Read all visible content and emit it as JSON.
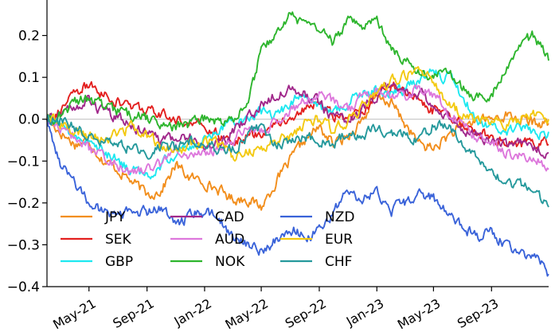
{
  "chart_data": {
    "type": "line",
    "title": "",
    "xlabel": "",
    "ylabel": "",
    "xlim": [
      "2021-02-01",
      "2023-12-31"
    ],
    "ylim": [
      -0.4,
      0.3
    ],
    "y_ticks": [
      0.3,
      0.2,
      0.1,
      0.0,
      -0.1,
      -0.2,
      -0.3,
      -0.4
    ],
    "y_tick_labels": [
      "0.3",
      "0.2",
      "0.1",
      "0.0",
      "−0.1",
      "−0.2",
      "−0.3",
      "−0.4"
    ],
    "x_ticks": [
      "2021-05-01",
      "2021-09-01",
      "2022-01-01",
      "2022-05-01",
      "2022-09-01",
      "2023-01-01",
      "2023-05-01",
      "2023-09-01"
    ],
    "x_tick_labels": [
      "May-21",
      "Sep-21",
      "Jan-22",
      "May-22",
      "Sep-22",
      "Jan-23",
      "May-23",
      "Sep-23"
    ],
    "grid": false,
    "reference_line": 0.0,
    "legend_position": "lower-left",
    "dates": [
      "2021-02-01",
      "2021-03-01",
      "2021-04-01",
      "2021-05-01",
      "2021-06-01",
      "2021-07-01",
      "2021-08-01",
      "2021-09-01",
      "2021-10-01",
      "2021-11-01",
      "2021-12-01",
      "2022-01-01",
      "2022-02-01",
      "2022-03-01",
      "2022-04-01",
      "2022-05-01",
      "2022-06-01",
      "2022-07-01",
      "2022-08-01",
      "2022-09-01",
      "2022-10-01",
      "2022-11-01",
      "2022-12-01",
      "2023-01-01",
      "2023-02-01",
      "2023-03-01",
      "2023-04-01",
      "2023-05-01",
      "2023-06-01",
      "2023-07-01",
      "2023-08-01",
      "2023-09-01",
      "2023-10-01",
      "2023-11-01",
      "2023-12-01",
      "2023-12-31"
    ],
    "series": [
      {
        "name": "JPY",
        "color": "#f28e1c",
        "values": [
          0.0,
          -0.03,
          -0.06,
          -0.05,
          -0.1,
          -0.12,
          -0.15,
          -0.18,
          -0.17,
          -0.11,
          -0.14,
          -0.15,
          -0.17,
          -0.19,
          -0.19,
          -0.21,
          -0.15,
          -0.1,
          -0.05,
          -0.02,
          -0.06,
          -0.04,
          0.0,
          0.05,
          0.04,
          -0.01,
          -0.06,
          -0.07,
          -0.04,
          -0.02,
          0.0,
          0.0,
          0.01,
          0.0,
          -0.01,
          -0.01
        ]
      },
      {
        "name": "SEK",
        "color": "#e3201f",
        "values": [
          0.0,
          0.02,
          0.06,
          0.08,
          0.06,
          0.04,
          0.03,
          0.02,
          0.01,
          0.0,
          -0.01,
          -0.02,
          -0.04,
          -0.05,
          -0.04,
          -0.03,
          -0.01,
          0.0,
          0.03,
          0.04,
          0.01,
          0.0,
          0.02,
          0.06,
          0.08,
          0.07,
          0.04,
          0.02,
          0.0,
          -0.01,
          -0.03,
          -0.04,
          -0.05,
          -0.06,
          -0.06,
          -0.06
        ]
      },
      {
        "name": "GBP",
        "color": "#1de8f0",
        "values": [
          0.0,
          -0.01,
          -0.04,
          -0.05,
          -0.08,
          -0.1,
          -0.12,
          -0.14,
          -0.11,
          -0.08,
          -0.07,
          -0.05,
          -0.02,
          0.0,
          0.0,
          0.02,
          0.01,
          0.04,
          0.06,
          0.03,
          0.01,
          0.04,
          0.06,
          0.07,
          0.06,
          0.07,
          0.09,
          0.11,
          0.1,
          0.05,
          0.0,
          -0.02,
          -0.03,
          -0.02,
          -0.03,
          -0.03
        ]
      },
      {
        "name": "CAD",
        "color": "#a1288b",
        "values": [
          0.0,
          0.02,
          0.03,
          0.04,
          0.02,
          0.0,
          -0.01,
          -0.04,
          -0.05,
          -0.05,
          -0.04,
          -0.07,
          -0.06,
          -0.03,
          0.0,
          0.03,
          0.06,
          0.08,
          0.06,
          0.04,
          0.0,
          0.0,
          0.02,
          0.05,
          0.08,
          0.07,
          0.06,
          0.04,
          0.0,
          -0.02,
          -0.04,
          -0.05,
          -0.06,
          -0.06,
          -0.07,
          -0.08
        ]
      },
      {
        "name": "AUD",
        "color": "#dd78dc",
        "values": [
          0.0,
          -0.02,
          -0.04,
          -0.07,
          -0.09,
          -0.11,
          -0.13,
          -0.12,
          -0.11,
          -0.07,
          -0.09,
          -0.08,
          -0.07,
          -0.05,
          -0.02,
          -0.03,
          0.0,
          0.02,
          0.04,
          0.06,
          0.04,
          0.02,
          0.05,
          0.07,
          0.06,
          0.05,
          0.08,
          0.06,
          0.02,
          -0.01,
          -0.04,
          -0.06,
          -0.08,
          -0.09,
          -0.09,
          -0.12
        ]
      },
      {
        "name": "NOK",
        "color": "#2db52d",
        "values": [
          0.0,
          0.01,
          0.04,
          0.05,
          0.03,
          0.02,
          0.01,
          0.0,
          -0.01,
          -0.02,
          -0.01,
          0.0,
          -0.01,
          0.0,
          0.04,
          0.16,
          0.2,
          0.25,
          0.22,
          0.21,
          0.18,
          0.24,
          0.21,
          0.24,
          0.17,
          0.14,
          0.12,
          0.1,
          0.12,
          0.07,
          0.05,
          0.06,
          0.11,
          0.18,
          0.2,
          0.14
        ]
      },
      {
        "name": "NZD",
        "color": "#3a63d9",
        "values": [
          0.0,
          -0.1,
          -0.15,
          -0.2,
          -0.22,
          -0.23,
          -0.22,
          -0.22,
          -0.21,
          -0.25,
          -0.23,
          -0.22,
          -0.24,
          -0.28,
          -0.3,
          -0.32,
          -0.29,
          -0.26,
          -0.28,
          -0.27,
          -0.22,
          -0.17,
          -0.19,
          -0.18,
          -0.22,
          -0.2,
          -0.17,
          -0.19,
          -0.22,
          -0.26,
          -0.28,
          -0.27,
          -0.3,
          -0.32,
          -0.33,
          -0.37
        ]
      },
      {
        "name": "EUR",
        "color": "#f3c911",
        "values": [
          0.0,
          -0.01,
          -0.03,
          -0.04,
          -0.05,
          -0.03,
          -0.02,
          -0.04,
          -0.06,
          -0.08,
          -0.06,
          -0.05,
          -0.06,
          -0.09,
          -0.08,
          -0.07,
          -0.05,
          -0.04,
          -0.01,
          0.0,
          -0.03,
          0.0,
          0.03,
          0.07,
          0.09,
          0.1,
          0.12,
          0.09,
          0.04,
          0.01,
          0.0,
          0.0,
          -0.01,
          0.0,
          0.01,
          0.0
        ]
      },
      {
        "name": "CHF",
        "color": "#25999c",
        "values": [
          0.0,
          0.0,
          -0.02,
          -0.04,
          -0.06,
          -0.06,
          -0.07,
          -0.08,
          -0.06,
          -0.07,
          -0.05,
          -0.05,
          -0.08,
          -0.07,
          -0.04,
          -0.02,
          -0.06,
          -0.05,
          -0.04,
          -0.05,
          -0.06,
          -0.03,
          -0.04,
          -0.02,
          -0.03,
          -0.04,
          -0.05,
          -0.01,
          -0.02,
          -0.06,
          -0.09,
          -0.12,
          -0.15,
          -0.16,
          -0.17,
          -0.21
        ]
      }
    ]
  }
}
